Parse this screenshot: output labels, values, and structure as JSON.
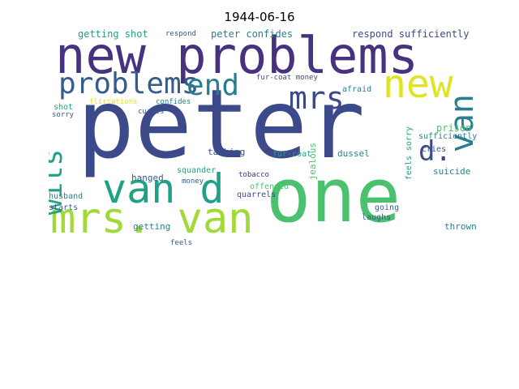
{
  "title": "1944-06-16",
  "colors": {
    "dark_purple": "#46327e",
    "indigo": "#3d4a89",
    "blue": "#365c8d",
    "teal": "#277f8e",
    "sea": "#1fa187",
    "green": "#4ac16d",
    "lime": "#a0da39",
    "yellow": "#e0e322"
  },
  "words": [
    {
      "text": "peter",
      "color": "indigo"
    },
    {
      "text": "one",
      "color": "green"
    },
    {
      "text": "new problems",
      "color": "dark_purple"
    },
    {
      "text": "mrs. van",
      "color": "lime"
    },
    {
      "text": "van d",
      "color": "sea"
    },
    {
      "text": "new",
      "color": "yellow"
    },
    {
      "text": "problems",
      "color": "blue"
    },
    {
      "text": "end",
      "color": "teal"
    },
    {
      "text": "mrs.",
      "color": "indigo"
    },
    {
      "text": "van",
      "color": "teal"
    },
    {
      "text": "wits",
      "color": "sea"
    },
    {
      "text": "d.",
      "color": "indigo"
    },
    {
      "text": "getting shot",
      "color": "sea"
    },
    {
      "text": "respond",
      "color": "blue"
    },
    {
      "text": "peter confides",
      "color": "teal"
    },
    {
      "text": "respond sufficiently",
      "color": "indigo"
    },
    {
      "text": "fur-coat money",
      "color": "indigo"
    },
    {
      "text": "afraid",
      "color": "teal"
    },
    {
      "text": "shot",
      "color": "sea"
    },
    {
      "text": "flirtations",
      "color": "yellow"
    },
    {
      "text": "confides",
      "color": "teal"
    },
    {
      "text": "sorry",
      "color": "blue"
    },
    {
      "text": "curses",
      "color": "blue"
    },
    {
      "text": "prison",
      "color": "green"
    },
    {
      "text": "sufficiently",
      "color": "teal"
    },
    {
      "text": "talking",
      "color": "indigo"
    },
    {
      "text": "fur-coat",
      "color": "sea"
    },
    {
      "text": "jealous",
      "color": "green"
    },
    {
      "text": "feels sorry",
      "color": "sea"
    },
    {
      "text": "dussel",
      "color": "teal"
    },
    {
      "text": "cries",
      "color": "blue"
    },
    {
      "text": "hanged",
      "color": "blue"
    },
    {
      "text": "tobacco",
      "color": "dark_purple"
    },
    {
      "text": "suicide",
      "color": "teal"
    },
    {
      "text": "offended",
      "color": "green"
    },
    {
      "text": "money",
      "color": "blue"
    },
    {
      "text": "quarrels",
      "color": "indigo"
    },
    {
      "text": "husband",
      "color": "teal"
    },
    {
      "text": "getting",
      "color": "teal"
    },
    {
      "text": "going",
      "color": "blue"
    },
    {
      "text": "starts",
      "color": "blue"
    },
    {
      "text": "laughs",
      "color": "blue"
    },
    {
      "text": "thrown",
      "color": "teal"
    },
    {
      "text": "feels",
      "color": "blue"
    },
    {
      "text": "squander",
      "color": "sea"
    }
  ]
}
